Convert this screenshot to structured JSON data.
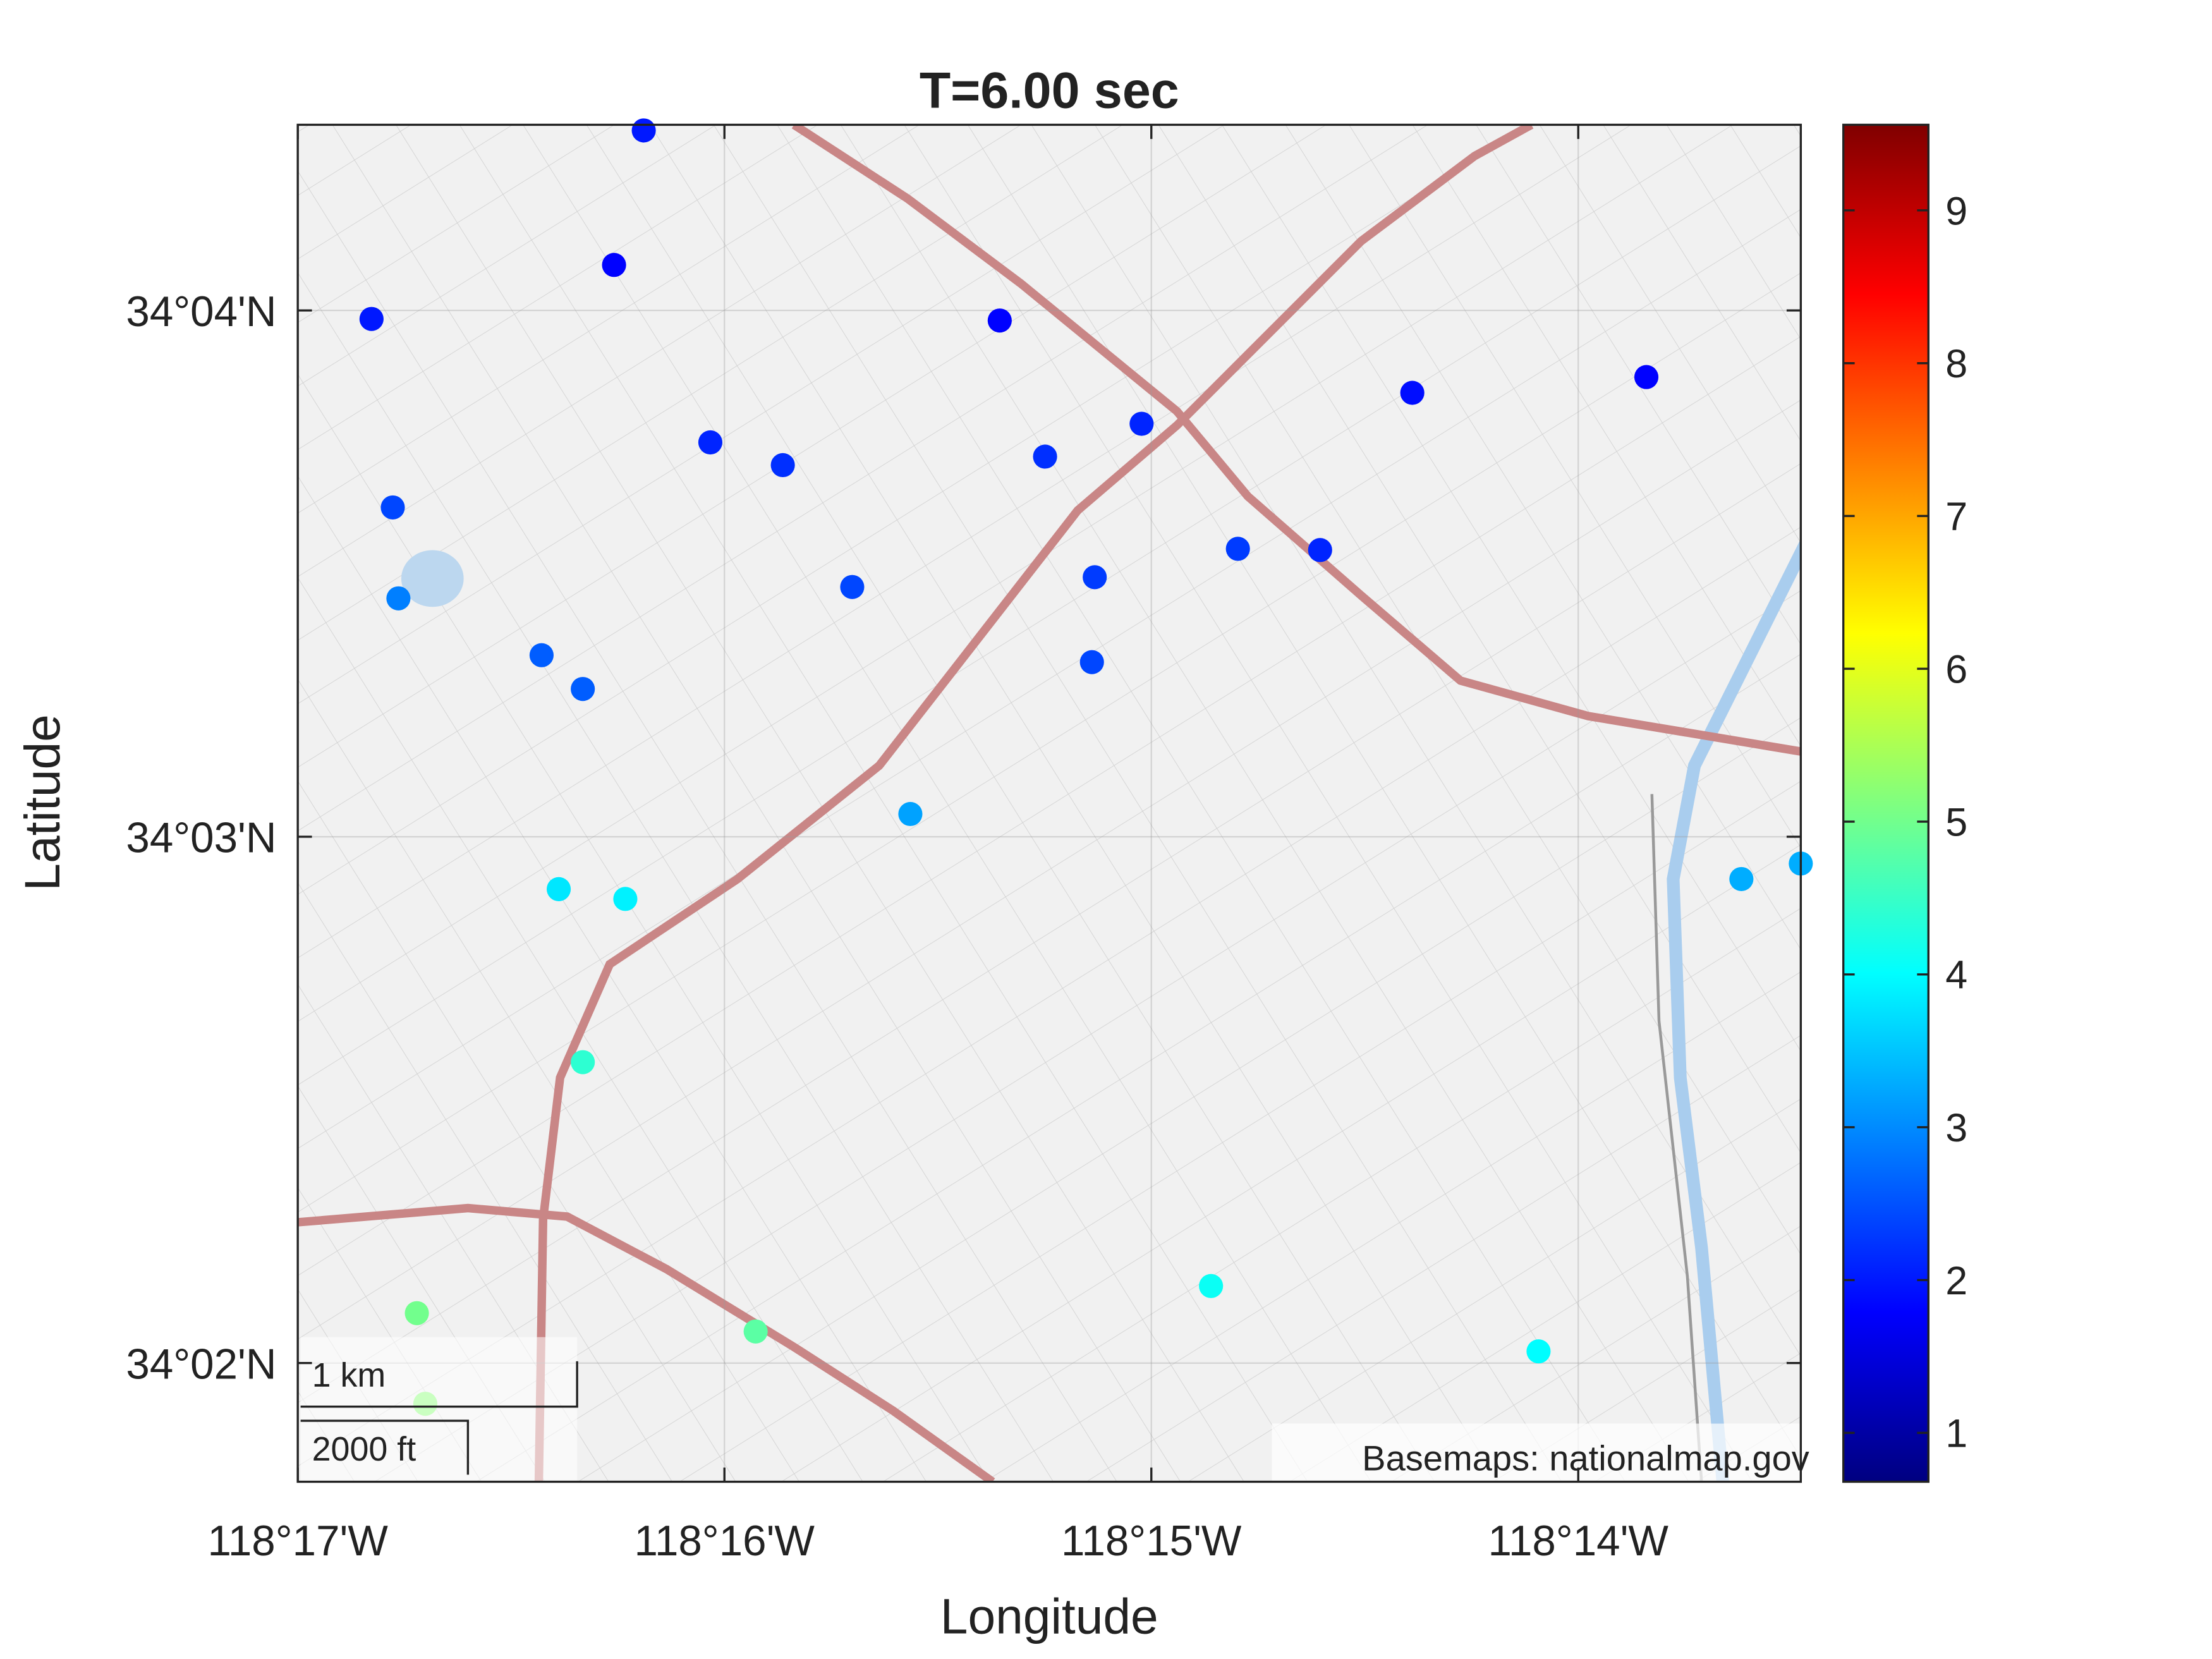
{
  "chart_data": {
    "type": "scatter",
    "title": "T=6.00 sec",
    "x_label": "Longitude",
    "y_label": "Latitude",
    "x": [
      -118.26982,
      -118.27098,
      -118.28045,
      -118.25592,
      -118.23981,
      -118.23067,
      -118.25038,
      -118.26722,
      -118.26439,
      -118.25415,
      -118.27962,
      -118.24662,
      -118.24341,
      -118.25221,
      -118.26168,
      -118.2794,
      -118.27381,
      -118.25232,
      -118.2722,
      -118.25941,
      -118.22464,
      -118.22696,
      -118.27314,
      -118.27054,
      -118.2722,
      -118.24767,
      -118.27868,
      -118.26545,
      -118.23488,
      -118.27835
    ],
    "y": [
      34.07237,
      34.06811,
      34.0664,
      34.06635,
      34.06406,
      34.06456,
      34.06308,
      34.06249,
      34.06177,
      34.06204,
      34.06043,
      34.05912,
      34.05908,
      34.05822,
      34.05791,
      34.05755,
      34.05575,
      34.05553,
      34.05468,
      34.05072,
      34.04915,
      34.04866,
      34.04834,
      34.04803,
      34.04286,
      34.03577,
      34.03491,
      34.03433,
      34.0337,
      34.03204
    ],
    "values": [
      2.0,
      1.8,
      2.0,
      1.8,
      1.9,
      1.8,
      2.1,
      2.1,
      2.2,
      2.2,
      2.4,
      2.3,
      2.1,
      2.3,
      2.4,
      2.9,
      2.6,
      2.4,
      2.6,
      3.2,
      3.3,
      3.3,
      3.8,
      3.9,
      4.4,
      4.1,
      5.0,
      4.8,
      4.0,
      5.2
    ],
    "colormap": "jet",
    "clim": [
      0.68,
      9.56
    ],
    "cticks": [
      1,
      2,
      3,
      4,
      5,
      6,
      7,
      8,
      9
    ],
    "xlim": [
      -118.28333,
      -118.22464
    ],
    "ylim": [
      34.02957,
      34.07255
    ],
    "xticks": [
      {
        "value": -118.28333,
        "label": "118°17'W"
      },
      {
        "value": -118.26667,
        "label": "118°16'W"
      },
      {
        "value": -118.25,
        "label": "118°15'W"
      },
      {
        "value": -118.23333,
        "label": "118°14'W"
      }
    ],
    "yticks": [
      {
        "value": 34.03333,
        "label": "34°02'N"
      },
      {
        "value": 34.05,
        "label": "34°03'N"
      },
      {
        "value": 34.06667,
        "label": "34°04'N"
      }
    ],
    "grid": true,
    "basemap_credit": "Basemaps: nationalmap.gov",
    "scale_bar": {
      "km_label": "1 km",
      "ft_label": "2000 ft"
    }
  }
}
